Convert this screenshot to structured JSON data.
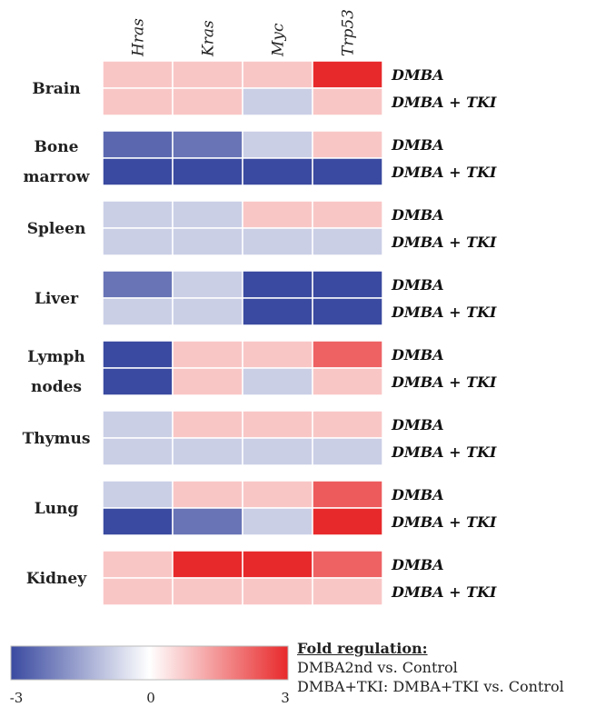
{
  "chart_data": {
    "type": "heatmap",
    "genes": [
      "Hras",
      "Kras",
      "Myc",
      "Trp53"
    ],
    "conditions": [
      "DMBA",
      "DMBA + TKI"
    ],
    "color_scale": {
      "min": -3,
      "max": 3,
      "min_color": "#3a4aa0",
      "mid_color": "#ffffff",
      "max_color": "#e8292b",
      "tick_labels": [
        "-3",
        "0",
        "3"
      ]
    },
    "tissues": [
      {
        "label_lines": [
          "Brain"
        ],
        "rows": [
          [
            0.8,
            0.8,
            0.8,
            3
          ],
          [
            0.8,
            0.8,
            -0.8,
            0.8
          ]
        ]
      },
      {
        "label_lines": [
          "Bone",
          "marrow"
        ],
        "rows": [
          [
            -2.5,
            -2.3,
            -0.8,
            0.8
          ],
          [
            -3,
            -3,
            -3,
            -3
          ]
        ]
      },
      {
        "label_lines": [
          "Spleen"
        ],
        "rows": [
          [
            -0.8,
            -0.8,
            0.8,
            0.8
          ],
          [
            -0.8,
            -0.8,
            -0.8,
            -0.8
          ]
        ]
      },
      {
        "label_lines": [
          "Liver"
        ],
        "rows": [
          [
            -2.3,
            -0.8,
            -3,
            -3
          ],
          [
            -0.8,
            -0.8,
            -3,
            -3
          ]
        ]
      },
      {
        "label_lines": [
          "Lymph",
          "nodes"
        ],
        "rows": [
          [
            -3,
            0.8,
            0.8,
            2.2
          ],
          [
            -3,
            0.8,
            -0.8,
            0.8
          ]
        ]
      },
      {
        "label_lines": [
          "Thymus"
        ],
        "rows": [
          [
            -0.8,
            0.8,
            0.8,
            0.8
          ],
          [
            -0.8,
            -0.8,
            -0.8,
            -0.8
          ]
        ]
      },
      {
        "label_lines": [
          "Lung"
        ],
        "rows": [
          [
            -0.8,
            0.8,
            0.8,
            2.3
          ],
          [
            -3,
            -2.3,
            -0.8,
            3
          ]
        ]
      },
      {
        "label_lines": [
          "Kidney"
        ],
        "rows": [
          [
            0.8,
            3,
            3,
            2.2
          ],
          [
            0.8,
            0.8,
            0.8,
            0.8
          ]
        ]
      }
    ]
  },
  "legend": {
    "title": "Fold regulation:",
    "line1": "DMBA2nd vs. Control",
    "line2": "DMBA+TKI: DMBA+TKI vs. Control"
  }
}
